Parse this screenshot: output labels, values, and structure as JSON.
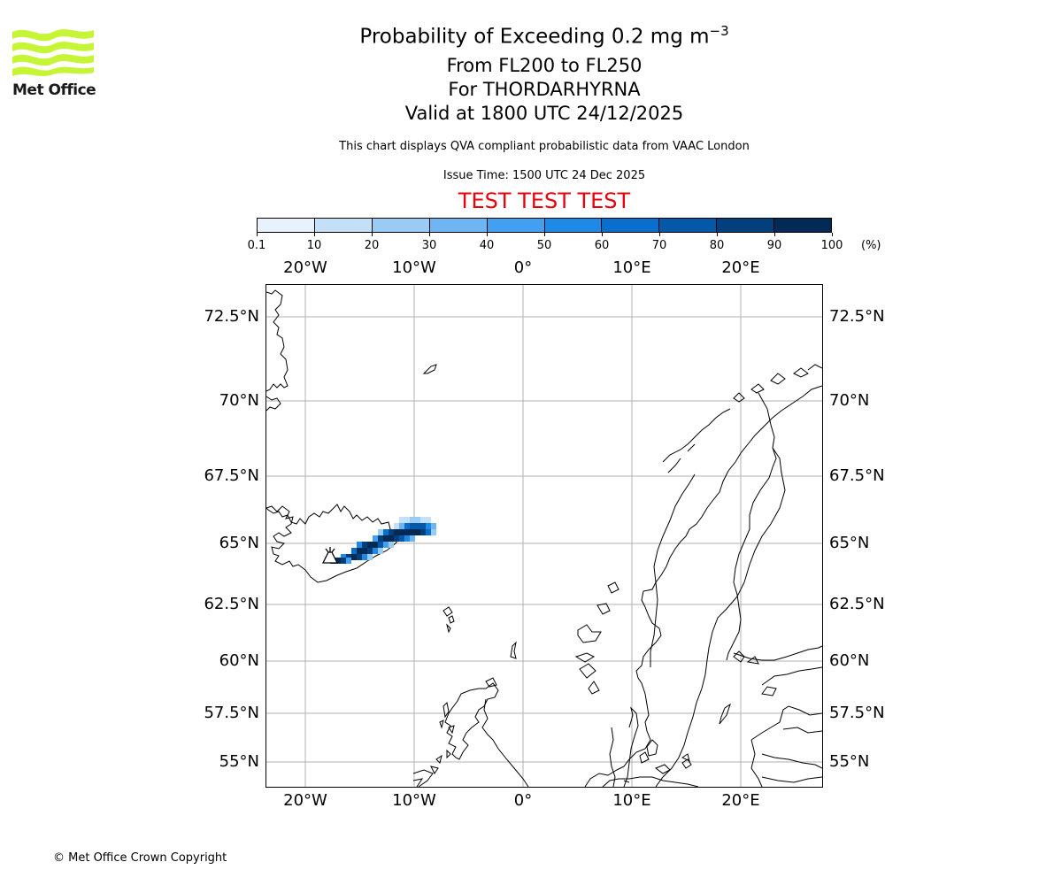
{
  "header": {
    "title_prefix": "Probability of Exceeding 0.2 mg m",
    "title_exp": "−3",
    "levels": "From FL200 to FL250",
    "volcano": "For THORDARHYRNA",
    "valid": "Valid at 1800 UTC 24/12/2025",
    "description": "This chart displays QVA compliant probabilistic data from VAAC London",
    "issue_time": "Issue Time: 1500 UTC 24 Dec 2025",
    "test_banner": "TEST TEST TEST"
  },
  "logo": {
    "text": "Met Office",
    "color": "#c6f536"
  },
  "footer": {
    "copyright": "© Met Office Crown Copyright"
  },
  "colorbar": {
    "ticks": [
      "0.1",
      "10",
      "20",
      "30",
      "40",
      "50",
      "60",
      "70",
      "80",
      "90",
      "100"
    ],
    "unit": "(%)",
    "colors": [
      "#e8f2fd",
      "#c4e0f8",
      "#99cbf5",
      "#6eb5f2",
      "#439ff0",
      "#1f8ae6",
      "#0a6fcc",
      "#0557a8",
      "#033f7d",
      "#022a55"
    ]
  },
  "map": {
    "lat_labels": [
      "72.5°N",
      "70°N",
      "67.5°N",
      "65°N",
      "62.5°N",
      "60°N",
      "57.5°N",
      "55°N"
    ],
    "lon_labels": [
      "20°W",
      "10°W",
      "0°",
      "10°E",
      "20°E"
    ],
    "grid_color": "#b0b0b0",
    "coast_color": "#000000",
    "volcano_icon": "volcano-icon"
  }
}
